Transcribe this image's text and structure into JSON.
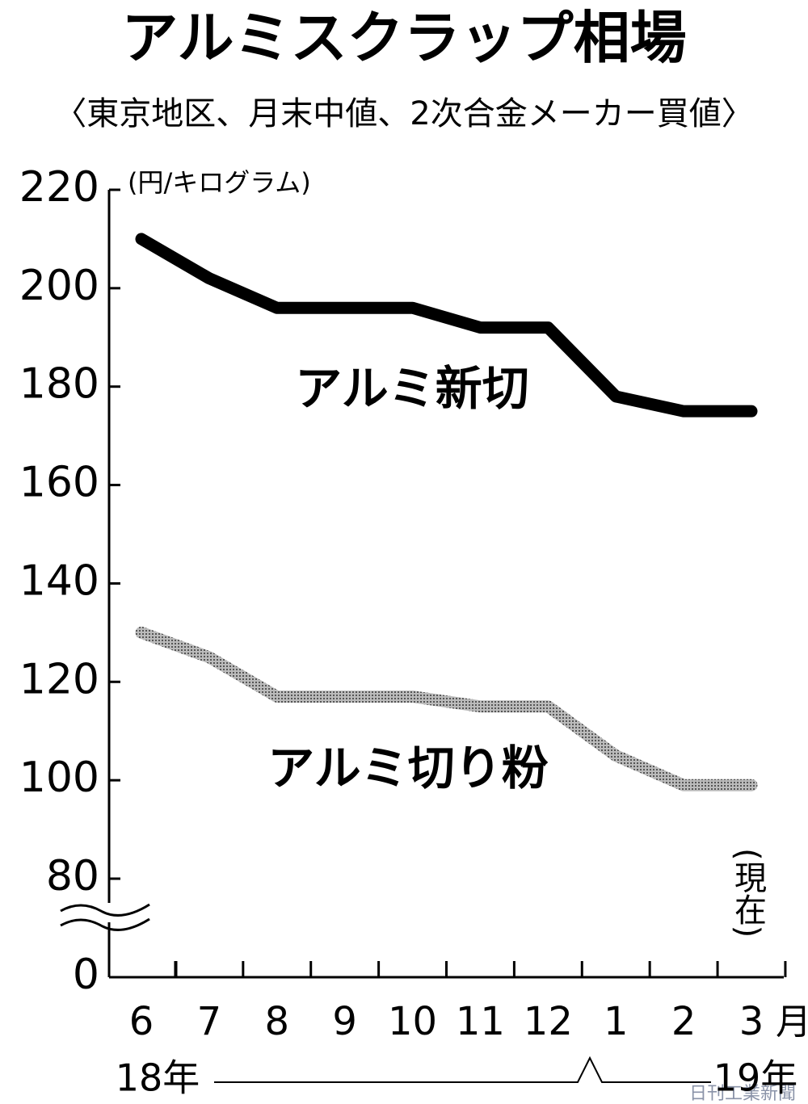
{
  "chart_data": {
    "type": "line",
    "title": "アルミスクラップ相場",
    "subtitle": "〈東京地区、月末中値、2次合金メーカー買値〉",
    "y_label": "(円/キログラム)",
    "categories": [
      "6",
      "7",
      "8",
      "9",
      "10",
      "11",
      "12",
      "1",
      "2",
      "3"
    ],
    "x_unit": "月",
    "years": [
      "18年",
      "19年"
    ],
    "annotation": "(現在)",
    "series": [
      {
        "name": "アルミ新切",
        "color": "#000000",
        "values": [
          210,
          202,
          196,
          196,
          196,
          192,
          192,
          178,
          175,
          175
        ]
      },
      {
        "name": "アルミ切り粉",
        "color": "#9a9a9a",
        "values": [
          130,
          125,
          117,
          117,
          117,
          115,
          115,
          105,
          99,
          99
        ]
      }
    ],
    "ylim": [
      0,
      220
    ],
    "axis_break": [
      0,
      80
    ],
    "yticks": [
      0,
      80,
      100,
      120,
      140,
      160,
      180,
      200,
      220
    ],
    "source": "日刊工業新聞"
  }
}
